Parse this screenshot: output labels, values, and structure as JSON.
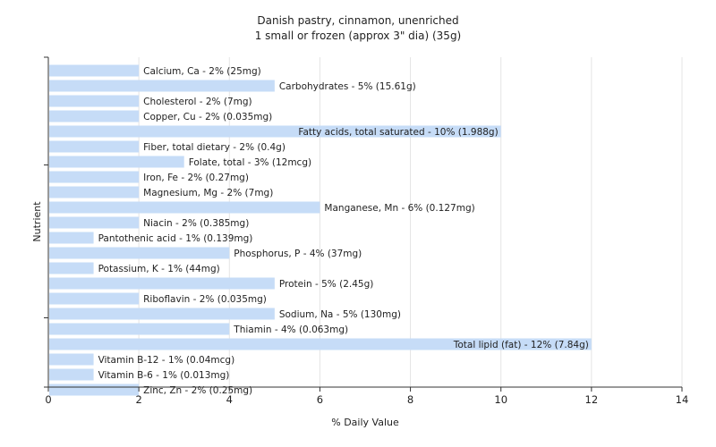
{
  "chart_data": {
    "type": "bar",
    "orientation": "horizontal",
    "title": "Danish pastry, cinnamon, unenriched",
    "subtitle": "1 small or frozen (approx 3\" dia) (35g)",
    "xlabel": "% Daily Value",
    "ylabel": "Nutrient",
    "xlim": [
      0,
      14
    ],
    "xticks": [
      "0",
      "2",
      "4",
      "6",
      "8",
      "10",
      "12",
      "14"
    ],
    "grid": "vertical",
    "bar_color": "#c6dcf7",
    "bars": [
      {
        "name": "Calcium, Ca",
        "value": 2,
        "label": "Calcium, Ca - 2% (25mg)"
      },
      {
        "name": "Carbohydrates",
        "value": 5,
        "label": "Carbohydrates - 5% (15.61g)"
      },
      {
        "name": "Cholesterol",
        "value": 2,
        "label": "Cholesterol - 2% (7mg)"
      },
      {
        "name": "Copper, Cu",
        "value": 2,
        "label": "Copper, Cu - 2% (0.035mg)"
      },
      {
        "name": "Fatty acids, total saturated",
        "value": 10,
        "label": "Fatty acids, total saturated - 10% (1.988g)"
      },
      {
        "name": "Fiber, total dietary",
        "value": 2,
        "label": "Fiber, total dietary - 2% (0.4g)"
      },
      {
        "name": "Folate, total",
        "value": 3,
        "label": "Folate, total - 3% (12mcg)"
      },
      {
        "name": "Iron, Fe",
        "value": 2,
        "label": "Iron, Fe - 2% (0.27mg)"
      },
      {
        "name": "Magnesium, Mg",
        "value": 2,
        "label": "Magnesium, Mg - 2% (7mg)"
      },
      {
        "name": "Manganese, Mn",
        "value": 6,
        "label": "Manganese, Mn - 6% (0.127mg)"
      },
      {
        "name": "Niacin",
        "value": 2,
        "label": "Niacin - 2% (0.385mg)"
      },
      {
        "name": "Pantothenic acid",
        "value": 1,
        "label": "Pantothenic acid - 1% (0.139mg)"
      },
      {
        "name": "Phosphorus, P",
        "value": 4,
        "label": "Phosphorus, P - 4% (37mg)"
      },
      {
        "name": "Potassium, K",
        "value": 1,
        "label": "Potassium, K - 1% (44mg)"
      },
      {
        "name": "Protein",
        "value": 5,
        "label": "Protein - 5% (2.45g)"
      },
      {
        "name": "Riboflavin",
        "value": 2,
        "label": "Riboflavin - 2% (0.035mg)"
      },
      {
        "name": "Sodium, Na",
        "value": 5,
        "label": "Sodium, Na - 5% (130mg)"
      },
      {
        "name": "Thiamin",
        "value": 4,
        "label": "Thiamin - 4% (0.063mg)"
      },
      {
        "name": "Total lipid (fat)",
        "value": 12,
        "label": "Total lipid (fat) - 12% (7.84g)"
      },
      {
        "name": "Vitamin B-12",
        "value": 1,
        "label": "Vitamin B-12 - 1% (0.04mcg)"
      },
      {
        "name": "Vitamin B-6",
        "value": 1,
        "label": "Vitamin B-6 - 1% (0.013mg)"
      },
      {
        "name": "Zinc, Zn",
        "value": 2,
        "label": "Zinc, Zn - 2% (0.25mg)"
      }
    ]
  }
}
